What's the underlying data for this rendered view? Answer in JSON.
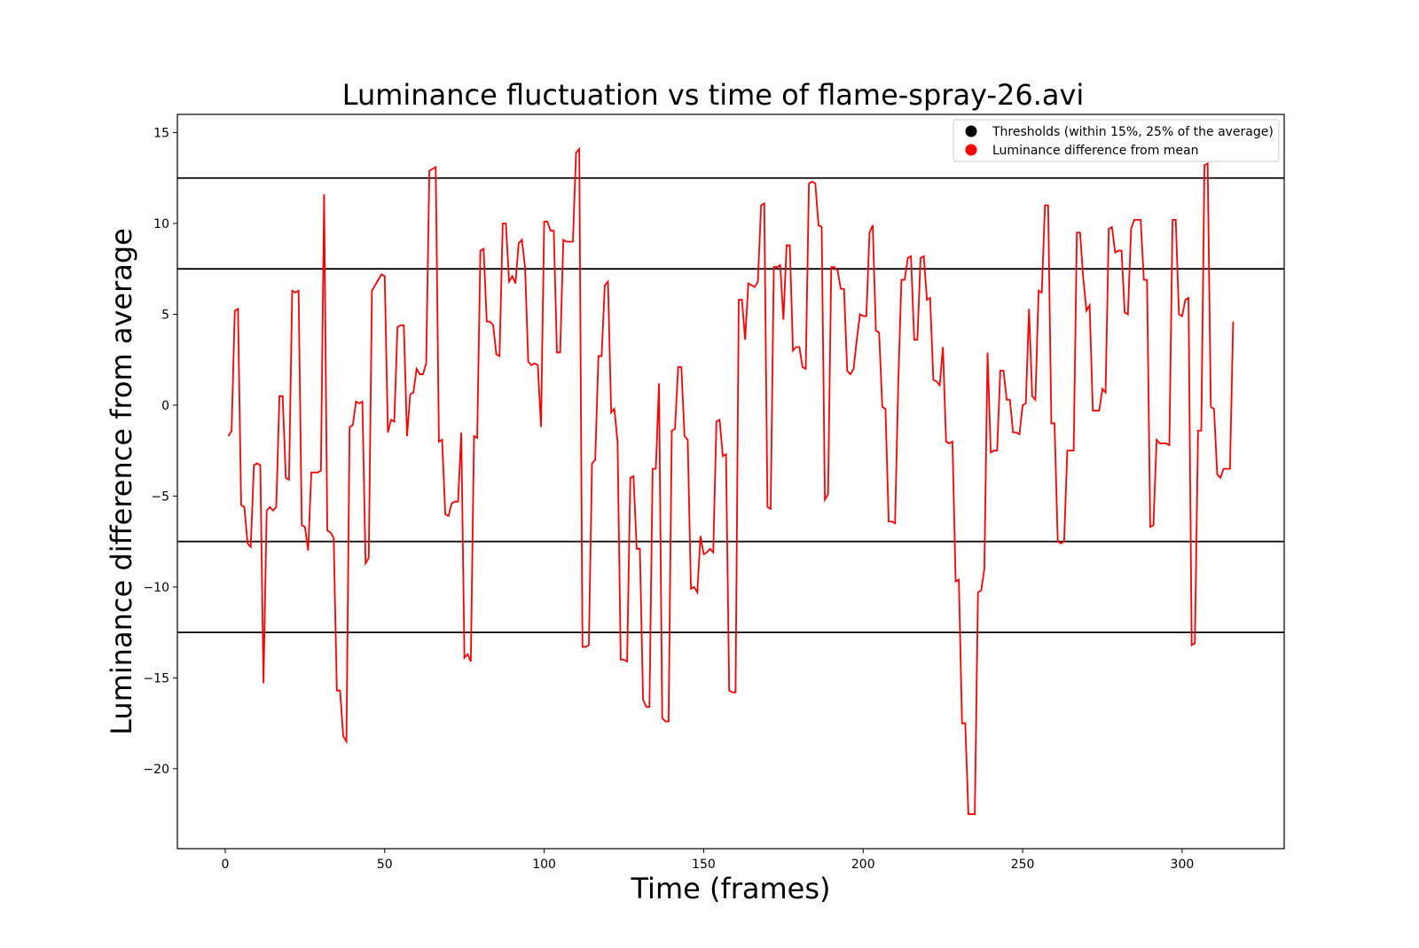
{
  "chart_data": {
    "type": "line",
    "title": "Luminance fluctuation vs time of flame-spray-26.avi",
    "xlabel": "Time (frames)",
    "ylabel": "Luminance difference from average",
    "xlim": [
      -15,
      332
    ],
    "ylim": [
      -24.4,
      16
    ],
    "xticks": [
      0,
      50,
      100,
      150,
      200,
      250,
      300
    ],
    "yticks": [
      15,
      10,
      5,
      0,
      -5,
      -10,
      -15,
      -20
    ],
    "ytick_labels": [
      "15",
      "10",
      "5",
      "0",
      "−5",
      "−10",
      "−15",
      "−20"
    ],
    "grid": false,
    "legend_position": "top-right",
    "legend": [
      {
        "label": "Thresholds (within 15%, 25% of the average)",
        "color": "#000000"
      },
      {
        "label": "Luminance difference from mean",
        "color": "#ff0000"
      }
    ],
    "thresholds": [
      12.5,
      7.5,
      -7.5,
      -12.5
    ],
    "series": [
      {
        "name": "Luminance difference from mean",
        "color": "#ff0000",
        "x_start": 1,
        "values": [
          -1.7,
          -1.4,
          5.2,
          5.3,
          -5.5,
          -5.6,
          -7.6,
          -7.8,
          -3.3,
          -3.2,
          -3.3,
          -15.3,
          -5.8,
          -5.6,
          -5.8,
          -5.6,
          0.5,
          0.5,
          -4.0,
          -4.1,
          6.3,
          6.2,
          6.3,
          -6.6,
          -6.7,
          -8.0,
          -3.7,
          -3.7,
          -3.7,
          -3.6,
          11.6,
          -6.9,
          -7.0,
          -7.3,
          -15.7,
          -15.7,
          -18.2,
          -18.5,
          -1.2,
          -1.1,
          0.2,
          0.1,
          0.2,
          -8.7,
          -8.4,
          6.3,
          6.6,
          6.9,
          7.2,
          7.1,
          -1.5,
          -0.8,
          -0.9,
          4.3,
          4.4,
          4.4,
          -1.7,
          0.6,
          0.7,
          2.0,
          1.7,
          1.7,
          2.3,
          12.9,
          13.0,
          13.1,
          -2.0,
          -1.9,
          -6.0,
          -6.1,
          -5.4,
          -5.3,
          -5.3,
          -1.5,
          -13.9,
          -13.7,
          -14.1,
          -1.7,
          -1.8,
          8.5,
          8.6,
          4.6,
          4.6,
          4.4,
          2.8,
          2.7,
          10.0,
          10.0,
          6.8,
          7.1,
          6.7,
          8.9,
          9.1,
          7.6,
          2.4,
          2.2,
          2.3,
          2.2,
          -1.2,
          10.1,
          10.1,
          9.6,
          9.6,
          2.9,
          2.9,
          9.1,
          9.0,
          9.0,
          9.0,
          13.9,
          14.1,
          -13.3,
          -13.3,
          -13.2,
          -3.2,
          -3.0,
          2.7,
          2.7,
          6.6,
          6.8,
          -0.4,
          -0.2,
          -2.0,
          -14.0,
          -14.0,
          -14.1,
          -4.0,
          -3.9,
          -7.9,
          -7.9,
          -16.2,
          -16.6,
          -16.6,
          -3.5,
          -3.5,
          1.2,
          -17.2,
          -17.4,
          -17.4,
          -1.4,
          -1.3,
          2.1,
          2.1,
          -1.7,
          -1.9,
          -10.1,
          -10.0,
          -10.3,
          -7.2,
          -8.2,
          -8.1,
          -7.9,
          -8.1,
          -0.9,
          -0.8,
          -2.8,
          -2.7,
          -15.7,
          -15.8,
          -15.8,
          5.8,
          5.8,
          3.6,
          6.7,
          6.6,
          6.5,
          6.8,
          11.0,
          11.1,
          -5.6,
          -5.7,
          7.6,
          7.6,
          7.7,
          4.7,
          8.8,
          8.8,
          3.0,
          3.2,
          3.2,
          2.1,
          2.0,
          12.2,
          12.3,
          12.2,
          9.9,
          9.8,
          -5.2,
          -4.9,
          7.6,
          7.6,
          7.4,
          6.4,
          6.4,
          1.9,
          1.7,
          2.0,
          3.6,
          5.0,
          4.9,
          4.9,
          9.5,
          9.9,
          4.1,
          4.0,
          -0.1,
          -0.2,
          -6.4,
          -6.4,
          -6.5,
          1.2,
          6.9,
          6.9,
          8.1,
          8.2,
          3.6,
          3.6,
          8.1,
          8.2,
          5.8,
          5.9,
          1.4,
          1.3,
          1.1,
          3.2,
          -2.0,
          -2.1,
          -2.0,
          -9.7,
          -9.6,
          -17.5,
          -17.5,
          -22.5,
          -22.5,
          -22.5,
          -10.3,
          -10.2,
          -9.0,
          2.9,
          -2.6,
          -2.5,
          -2.5,
          1.9,
          1.9,
          0.3,
          0.3,
          -1.5,
          -1.5,
          -1.6,
          0.0,
          0.1,
          5.3,
          0.5,
          0.3,
          6.3,
          6.2,
          11.0,
          11.0,
          -1.0,
          -1.0,
          -7.5,
          -7.6,
          -7.5,
          -2.5,
          -2.5,
          -2.5,
          9.5,
          9.5,
          7.0,
          5.2,
          5.5,
          -0.3,
          -0.3,
          -0.3,
          0.9,
          0.7,
          9.7,
          9.8,
          8.4,
          8.5,
          8.5,
          5.1,
          5.0,
          9.7,
          10.2,
          10.2,
          10.2,
          6.9,
          6.9,
          -6.7,
          -6.6,
          -1.9,
          -2.1,
          -2.1,
          -2.1,
          -2.2,
          10.2,
          10.2,
          5.0,
          4.9,
          5.8,
          5.9,
          -13.2,
          -13.1,
          -1.4,
          -1.4,
          13.2,
          13.3,
          -0.1,
          -0.2,
          -3.8,
          -4.0,
          -3.5,
          -3.5,
          -3.5,
          4.6
        ]
      }
    ]
  }
}
